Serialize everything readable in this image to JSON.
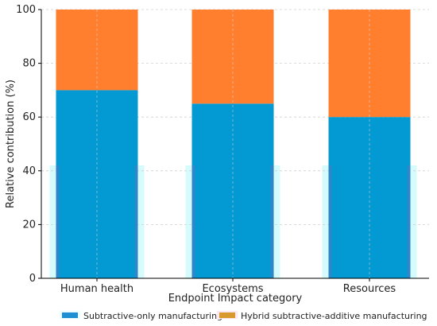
{
  "chart_data": {
    "type": "bar",
    "stacked": true,
    "categories": [
      "Human health",
      "Ecosystems",
      "Resources"
    ],
    "series": [
      {
        "name": "Subtractive-only manufacturing",
        "values": [
          70,
          65,
          60
        ],
        "color": "#0399d3"
      },
      {
        "name": "Hybrid subtractive-additive manufacturing",
        "values": [
          30,
          35,
          40
        ],
        "color": "#ff7f2e"
      }
    ],
    "legend_swatch_colors": [
      "#1f8fd4",
      "#d89a2e"
    ],
    "xlabel": "Endpoint Impact category",
    "ylabel": "Relative contribution (%)",
    "ylim": [
      0,
      100
    ],
    "yticks": [
      0,
      20,
      40,
      60,
      80,
      100
    ],
    "grid": true,
    "legend_position": "bottom"
  }
}
